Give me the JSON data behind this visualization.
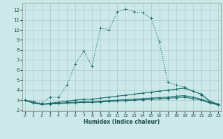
{
  "xlabel": "Humidex (Indice chaleur)",
  "background_color": "#cce8e8",
  "grid_color": "#aacccc",
  "line_color": "#1a6b6b",
  "x_ticks": [
    0,
    1,
    2,
    3,
    4,
    5,
    6,
    7,
    8,
    9,
    10,
    11,
    12,
    13,
    14,
    15,
    16,
    17,
    18,
    19,
    20,
    21,
    22,
    23
  ],
  "y_ticks": [
    2,
    3,
    4,
    5,
    6,
    7,
    8,
    9,
    10,
    11,
    12
  ],
  "xlim": [
    -0.3,
    23.3
  ],
  "ylim": [
    1.9,
    12.7
  ],
  "series": [
    {
      "x": [
        0,
        1,
        2,
        3,
        4,
        5,
        6,
        7,
        8,
        9,
        10,
        11,
        12,
        13,
        14,
        15,
        16,
        17,
        18,
        19,
        20,
        21,
        22,
        23
      ],
      "y": [
        3.0,
        2.9,
        2.7,
        3.3,
        3.3,
        4.5,
        6.6,
        7.9,
        6.4,
        10.2,
        10.0,
        11.8,
        12.1,
        11.8,
        11.7,
        11.2,
        8.8,
        4.8,
        4.5,
        4.3,
        3.9,
        3.5,
        2.8,
        2.6
      ],
      "dotted": true
    },
    {
      "x": [
        0,
        1,
        2,
        3,
        4,
        5,
        6,
        7,
        8,
        9,
        10,
        11,
        12,
        13,
        14,
        15,
        16,
        17,
        18,
        19,
        20,
        21,
        22,
        23
      ],
      "y": [
        3.0,
        2.8,
        2.6,
        2.7,
        2.8,
        2.9,
        3.0,
        3.1,
        3.1,
        3.2,
        3.3,
        3.4,
        3.5,
        3.6,
        3.7,
        3.8,
        3.9,
        4.0,
        4.1,
        4.2,
        3.9,
        3.6,
        2.9,
        2.6
      ],
      "dotted": false
    },
    {
      "x": [
        0,
        1,
        2,
        3,
        4,
        5,
        6,
        7,
        8,
        9,
        10,
        11,
        12,
        13,
        14,
        15,
        16,
        17,
        18,
        19,
        20,
        21,
        22,
        23
      ],
      "y": [
        3.0,
        2.75,
        2.6,
        2.65,
        2.7,
        2.75,
        2.8,
        2.85,
        2.85,
        2.9,
        2.95,
        3.0,
        3.05,
        3.1,
        3.15,
        3.2,
        3.25,
        3.3,
        3.4,
        3.45,
        3.3,
        3.1,
        2.78,
        2.58
      ],
      "dotted": false
    },
    {
      "x": [
        0,
        1,
        2,
        3,
        4,
        5,
        6,
        7,
        8,
        9,
        10,
        11,
        12,
        13,
        14,
        15,
        16,
        17,
        18,
        19,
        20,
        21,
        22,
        23
      ],
      "y": [
        3.0,
        2.7,
        2.58,
        2.62,
        2.65,
        2.7,
        2.74,
        2.78,
        2.78,
        2.82,
        2.87,
        2.92,
        2.96,
        3.0,
        3.04,
        3.08,
        3.12,
        3.18,
        3.25,
        3.3,
        3.15,
        3.0,
        2.72,
        2.52
      ],
      "dotted": false
    }
  ]
}
